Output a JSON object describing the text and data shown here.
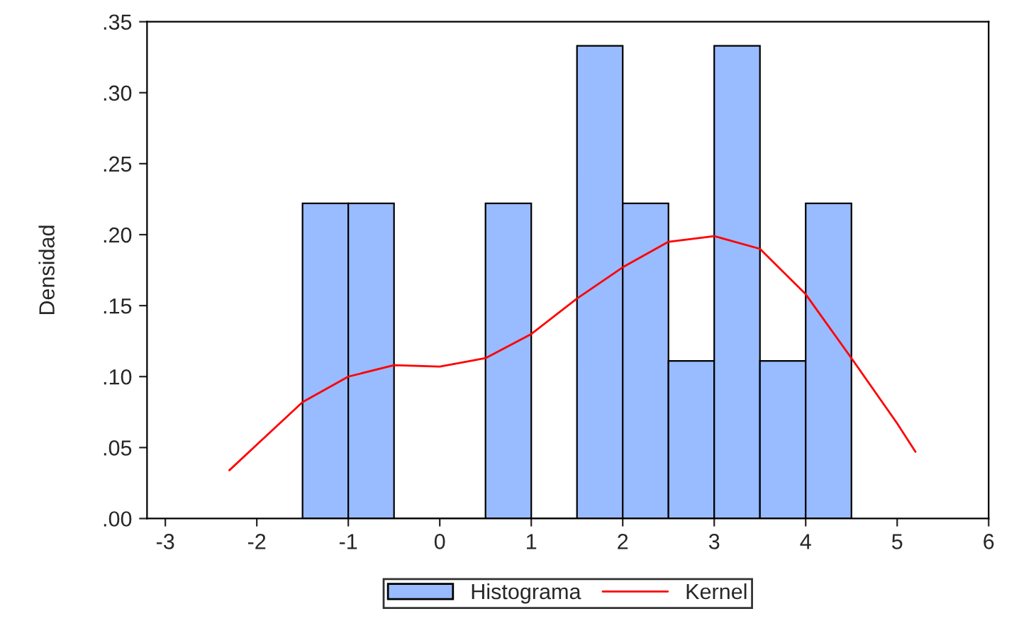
{
  "chart_data": {
    "type": "histogram",
    "ylabel": "Densidad",
    "legend": "bottom",
    "grid": false,
    "bins": [
      -1.5,
      -1.0,
      -0.5,
      0.0,
      0.5,
      1.0,
      1.5,
      2.0,
      2.5,
      3.0,
      3.5,
      4.0,
      4.5
    ],
    "series": [
      {
        "name": "Histograma",
        "color": "#99bbff",
        "values": [
          0.222,
          0.222,
          0,
          0,
          0.222,
          0,
          0.333,
          0.222,
          0.111,
          0.333,
          0.111,
          0.222
        ]
      },
      {
        "name": "Kernel",
        "type": "line",
        "color": "#ff0000",
        "x": [
          -2.3,
          -2.0,
          -1.5,
          -1.0,
          -0.5,
          0.0,
          0.5,
          1.0,
          1.5,
          2.0,
          2.5,
          3.0,
          3.5,
          4.0,
          4.5,
          5.0,
          5.2
        ],
        "values": [
          0.034,
          0.052,
          0.082,
          0.1,
          0.108,
          0.107,
          0.113,
          0.13,
          0.155,
          0.177,
          0.195,
          0.199,
          0.19,
          0.158,
          0.113,
          0.067,
          0.047
        ]
      }
    ],
    "xlim": [
      -3.2,
      6.0
    ],
    "ylim": [
      0,
      0.35
    ],
    "xticks": [
      -3,
      -2,
      -1,
      0,
      1,
      2,
      3,
      4,
      5,
      6
    ],
    "yticks": [
      {
        "value": 0,
        "label": ".00"
      },
      {
        "value": 0.05,
        "label": ".05"
      },
      {
        "value": 0.1,
        "label": ".10"
      },
      {
        "value": 0.15,
        "label": ".15"
      },
      {
        "value": 0.2,
        "label": ".20"
      },
      {
        "value": 0.25,
        "label": ".25"
      },
      {
        "value": 0.3,
        "label": ".30"
      },
      {
        "value": 0.35,
        "label": ".35"
      }
    ]
  }
}
